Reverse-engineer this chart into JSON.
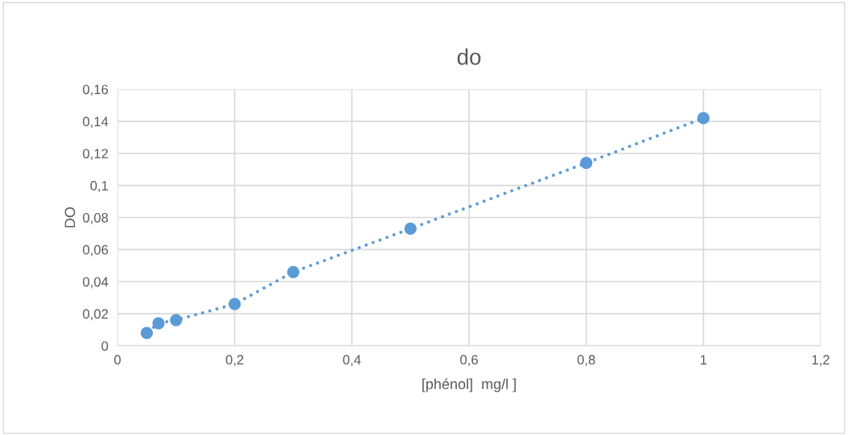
{
  "chart_data": {
    "type": "line",
    "title": "do",
    "xlabel": "[phénol]  mg/l ]",
    "ylabel": "DO",
    "x": [
      0.05,
      0.07,
      0.1,
      0.2,
      0.3,
      0.5,
      0.8,
      1
    ],
    "series": [
      {
        "color": "#5b9bd5",
        "values": [
          0.008,
          0.014,
          0.016,
          0.026,
          0.046,
          0.073,
          0.114,
          0.142
        ]
      }
    ],
    "marker": "circle",
    "line_style": "dotted",
    "grid": true,
    "legend": false,
    "xlim": [
      0,
      1.2
    ],
    "xticks": [
      {
        "value": 0,
        "label": "0"
      },
      {
        "value": 0.2,
        "label": "0,2"
      },
      {
        "value": 0.4,
        "label": "0,4"
      },
      {
        "value": 0.6,
        "label": "0,6"
      },
      {
        "value": 0.8,
        "label": "0,8"
      },
      {
        "value": 1,
        "label": "1"
      },
      {
        "value": 1.2,
        "label": "1,2"
      }
    ],
    "ylim": [
      0,
      0.16
    ],
    "yticks": [
      {
        "value": 0,
        "label": "0"
      },
      {
        "value": 0.02,
        "label": "0,02"
      },
      {
        "value": 0.04,
        "label": "0,04"
      },
      {
        "value": 0.06,
        "label": "0,06"
      },
      {
        "value": 0.08,
        "label": "0,08"
      },
      {
        "value": 0.1,
        "label": "0,1"
      },
      {
        "value": 0.12,
        "label": "0,12"
      },
      {
        "value": 0.14,
        "label": "0,14"
      },
      {
        "value": 0.16,
        "label": "0,16"
      }
    ]
  }
}
